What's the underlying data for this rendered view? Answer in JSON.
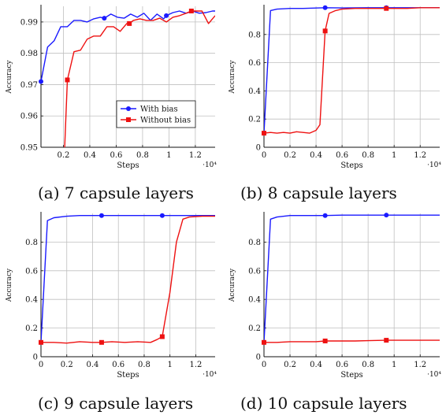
{
  "figure": {
    "captions": [
      "(a) 7 capsule layers",
      "(b) 8 capsule layers",
      "(c) 9 capsule layers",
      "(d) 10 capsule layers"
    ],
    "colors": {
      "with_bias": "#1a1aff",
      "without_bias": "#ee1111",
      "grid": "#bfbfbf"
    }
  },
  "chart_data": [
    {
      "type": "line",
      "caption": "(a) 7 capsule layers",
      "xlabel": "Steps",
      "ylabel": "Accuracy",
      "x_multiplier": "·10⁴",
      "xlim": [
        0.03,
        1.35
      ],
      "ylim": [
        0.95,
        0.995
      ],
      "xticks": [
        0.2,
        0.4,
        0.6,
        0.8,
        1,
        1.2
      ],
      "xticklabels": [
        "0.2",
        "0.4",
        "0.6",
        "0.8",
        "1",
        "1.2"
      ],
      "yticks": [
        0.95,
        0.96,
        0.97,
        0.98,
        0.99
      ],
      "yticklabels": [
        "0.95",
        "0.96",
        "0.97",
        "0.98",
        "0.99"
      ],
      "grid": true,
      "legend": {
        "position": "lower-right",
        "entries": [
          "With bias",
          "Without bias"
        ]
      },
      "series": [
        {
          "name": "With bias",
          "color": "#1a1aff",
          "marker": "circle",
          "x": [
            0.03,
            0.08,
            0.13,
            0.18,
            0.23,
            0.28,
            0.33,
            0.38,
            0.43,
            0.48,
            0.51,
            0.56,
            0.61,
            0.66,
            0.71,
            0.76,
            0.81,
            0.86,
            0.91,
            0.96,
            0.98,
            1.03,
            1.08,
            1.13,
            1.18,
            1.23,
            1.28,
            1.33,
            1.35
          ],
          "y": [
            0.971,
            0.982,
            0.984,
            0.9885,
            0.9885,
            0.9905,
            0.9905,
            0.99,
            0.991,
            0.9915,
            0.9912,
            0.9925,
            0.9915,
            0.9912,
            0.9925,
            0.9915,
            0.9928,
            0.9905,
            0.9925,
            0.991,
            0.992,
            0.993,
            0.9935,
            0.9928,
            0.9935,
            0.9928,
            0.993,
            0.9935,
            0.9935
          ],
          "marker_x": [
            0.03,
            0.51,
            0.98
          ],
          "marker_y": [
            0.971,
            0.9912,
            0.992
          ]
        },
        {
          "name": "Without bias",
          "color": "#ee1111",
          "marker": "square",
          "x": [
            0.21,
            0.23,
            0.28,
            0.33,
            0.38,
            0.43,
            0.48,
            0.53,
            0.58,
            0.63,
            0.68,
            0.7,
            0.73,
            0.78,
            0.83,
            0.88,
            0.93,
            0.98,
            1.03,
            1.08,
            1.13,
            1.17,
            1.2,
            1.25,
            1.3,
            1.35
          ],
          "y": [
            0.95,
            0.9715,
            0.9805,
            0.981,
            0.9845,
            0.9855,
            0.9855,
            0.9885,
            0.9885,
            0.987,
            0.9895,
            0.9895,
            0.9905,
            0.991,
            0.9905,
            0.9905,
            0.9912,
            0.99,
            0.9915,
            0.992,
            0.9928,
            0.9935,
            0.9935,
            0.9935,
            0.9895,
            0.992
          ],
          "marker_x": [
            0.23,
            0.7,
            1.17
          ],
          "marker_y": [
            0.9715,
            0.9895,
            0.9935
          ]
        }
      ]
    },
    {
      "type": "line",
      "caption": "(b) 8 capsule layers",
      "xlabel": "Steps",
      "ylabel": "Accuracy",
      "x_multiplier": "·10⁴",
      "xlim": [
        0,
        1.35
      ],
      "ylim": [
        0,
        1
      ],
      "xticks": [
        0,
        0.2,
        0.4,
        0.6,
        0.8,
        1,
        1.2
      ],
      "xticklabels": [
        "0",
        "0.2",
        "0.4",
        "0.6",
        "0.8",
        "1",
        "1.2"
      ],
      "yticks": [
        0,
        0.2,
        0.4,
        0.6,
        0.8
      ],
      "yticklabels": [
        "0",
        "0.2",
        "0.4",
        "0.6",
        "0.8"
      ],
      "grid": true,
      "series": [
        {
          "name": "With bias",
          "color": "#1a1aff",
          "marker": "circle",
          "x": [
            0,
            0.05,
            0.1,
            0.2,
            0.3,
            0.47,
            0.6,
            0.8,
            0.94,
            1.1,
            1.2,
            1.35
          ],
          "y": [
            0.1,
            0.97,
            0.98,
            0.985,
            0.985,
            0.99,
            0.988,
            0.99,
            0.99,
            0.99,
            0.99,
            0.99
          ],
          "marker_x": [
            0,
            0.47,
            0.94
          ],
          "marker_y": [
            0.1,
            0.99,
            0.99
          ]
        },
        {
          "name": "Without bias",
          "color": "#ee1111",
          "marker": "square",
          "x": [
            0,
            0.05,
            0.1,
            0.15,
            0.2,
            0.25,
            0.3,
            0.35,
            0.4,
            0.43,
            0.47,
            0.5,
            0.55,
            0.6,
            0.7,
            0.8,
            0.94,
            1.1,
            1.2,
            1.35
          ],
          "y": [
            0.1,
            0.105,
            0.1,
            0.105,
            0.1,
            0.11,
            0.105,
            0.1,
            0.12,
            0.16,
            0.825,
            0.95,
            0.97,
            0.98,
            0.985,
            0.985,
            0.985,
            0.985,
            0.99,
            0.99
          ],
          "marker_x": [
            0,
            0.47,
            0.94
          ],
          "marker_y": [
            0.1,
            0.825,
            0.985
          ]
        }
      ]
    },
    {
      "type": "line",
      "caption": "(c) 9 capsule layers",
      "xlabel": "Steps",
      "ylabel": "Accuracy",
      "x_multiplier": "·10⁴",
      "xlim": [
        0,
        1.35
      ],
      "ylim": [
        0,
        1
      ],
      "xticks": [
        0,
        0.2,
        0.4,
        0.6,
        0.8,
        1,
        1.2
      ],
      "xticklabels": [
        "0",
        "0.2",
        "0.4",
        "0.6",
        "0.8",
        "1",
        "1.2"
      ],
      "yticks": [
        0,
        0.2,
        0.4,
        0.6,
        0.8
      ],
      "yticklabels": [
        "0",
        "0.2",
        "0.4",
        "0.6",
        "0.8"
      ],
      "grid": true,
      "series": [
        {
          "name": "With bias",
          "color": "#1a1aff",
          "marker": "circle",
          "x": [
            0,
            0.05,
            0.1,
            0.2,
            0.3,
            0.47,
            0.6,
            0.8,
            0.94,
            1.1,
            1.2,
            1.35
          ],
          "y": [
            0.1,
            0.95,
            0.97,
            0.98,
            0.985,
            0.985,
            0.985,
            0.985,
            0.985,
            0.985,
            0.985,
            0.985
          ],
          "marker_x": [
            0,
            0.47,
            0.94
          ],
          "marker_y": [
            0.1,
            0.985,
            0.985
          ]
        },
        {
          "name": "Without bias",
          "color": "#ee1111",
          "marker": "square",
          "x": [
            0,
            0.1,
            0.2,
            0.3,
            0.4,
            0.47,
            0.55,
            0.65,
            0.75,
            0.85,
            0.9,
            0.94,
            1.0,
            1.05,
            1.1,
            1.15,
            1.25,
            1.35
          ],
          "y": [
            0.1,
            0.1,
            0.095,
            0.105,
            0.1,
            0.1,
            0.105,
            0.1,
            0.105,
            0.1,
            0.12,
            0.14,
            0.45,
            0.8,
            0.96,
            0.975,
            0.98,
            0.98
          ],
          "marker_x": [
            0,
            0.47,
            0.94
          ],
          "marker_y": [
            0.1,
            0.1,
            0.14
          ]
        }
      ]
    },
    {
      "type": "line",
      "caption": "(d) 10 capsule layers",
      "xlabel": "Steps",
      "ylabel": "Accuracy",
      "x_multiplier": "·10⁴",
      "xlim": [
        0,
        1.35
      ],
      "ylim": [
        0,
        1
      ],
      "xticks": [
        0,
        0.2,
        0.4,
        0.6,
        0.8,
        1,
        1.2
      ],
      "xticklabels": [
        "0",
        "0.2",
        "0.4",
        "0.6",
        "0.8",
        "1",
        "1.2"
      ],
      "yticks": [
        0,
        0.2,
        0.4,
        0.6,
        0.8
      ],
      "yticklabels": [
        "0",
        "0.2",
        "0.4",
        "0.6",
        "0.8"
      ],
      "grid": true,
      "series": [
        {
          "name": "With bias",
          "color": "#1a1aff",
          "marker": "circle",
          "x": [
            0,
            0.05,
            0.1,
            0.2,
            0.3,
            0.47,
            0.6,
            0.8,
            0.94,
            1.1,
            1.2,
            1.35
          ],
          "y": [
            0.1,
            0.96,
            0.975,
            0.985,
            0.985,
            0.985,
            0.988,
            0.988,
            0.988,
            0.988,
            0.988,
            0.988
          ],
          "marker_x": [
            0,
            0.47,
            0.94
          ],
          "marker_y": [
            0.1,
            0.985,
            0.988
          ]
        },
        {
          "name": "Without bias",
          "color": "#ee1111",
          "marker": "square",
          "x": [
            0,
            0.1,
            0.2,
            0.3,
            0.4,
            0.47,
            0.6,
            0.7,
            0.8,
            0.94,
            1.1,
            1.2,
            1.35
          ],
          "y": [
            0.1,
            0.1,
            0.105,
            0.105,
            0.105,
            0.11,
            0.11,
            0.11,
            0.112,
            0.115,
            0.115,
            0.115,
            0.115
          ],
          "marker_x": [
            0,
            0.47,
            0.94
          ],
          "marker_y": [
            0.1,
            0.11,
            0.115
          ]
        }
      ]
    }
  ]
}
